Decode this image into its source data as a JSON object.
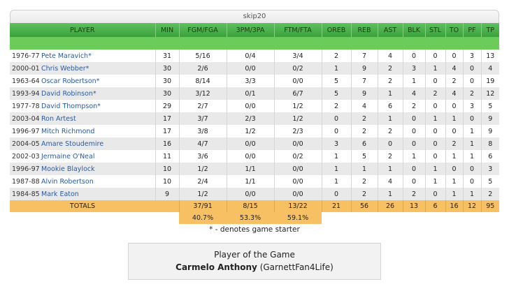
{
  "tab_title": "skip20",
  "columns": [
    "PLAYER",
    "MIN",
    "FGM/FGA",
    "3PM/3PA",
    "FTM/FTA",
    "OREB",
    "REB",
    "AST",
    "BLK",
    "STL",
    "TO",
    "PF",
    "TP"
  ],
  "rows": [
    {
      "year": "1976-77",
      "player": "Pete Maravich*",
      "min": "31",
      "fg": "5/16",
      "tp3": "0/4",
      "ft": "3/4",
      "oreb": "2",
      "reb": "7",
      "ast": "4",
      "blk": "0",
      "stl": "0",
      "to": "0",
      "pf": "3",
      "pts": "13"
    },
    {
      "year": "2000-01",
      "player": "Chris Webber*",
      "min": "30",
      "fg": "2/6",
      "tp3": "0/0",
      "ft": "0/2",
      "oreb": "1",
      "reb": "9",
      "ast": "2",
      "blk": "3",
      "stl": "1",
      "to": "4",
      "pf": "0",
      "pts": "4"
    },
    {
      "year": "1963-64",
      "player": "Oscar Robertson*",
      "min": "30",
      "fg": "8/14",
      "tp3": "3/3",
      "ft": "0/0",
      "oreb": "5",
      "reb": "7",
      "ast": "2",
      "blk": "1",
      "stl": "0",
      "to": "2",
      "pf": "0",
      "pts": "19"
    },
    {
      "year": "1993-94",
      "player": "David Robinson*",
      "min": "30",
      "fg": "3/12",
      "tp3": "0/1",
      "ft": "6/7",
      "oreb": "5",
      "reb": "9",
      "ast": "1",
      "blk": "4",
      "stl": "2",
      "to": "4",
      "pf": "2",
      "pts": "12"
    },
    {
      "year": "1977-78",
      "player": "David Thompson*",
      "min": "29",
      "fg": "2/7",
      "tp3": "0/0",
      "ft": "1/2",
      "oreb": "2",
      "reb": "4",
      "ast": "6",
      "blk": "2",
      "stl": "0",
      "to": "0",
      "pf": "3",
      "pts": "5"
    },
    {
      "year": "2003-04",
      "player": "Ron Artest",
      "min": "17",
      "fg": "3/7",
      "tp3": "2/3",
      "ft": "1/2",
      "oreb": "0",
      "reb": "2",
      "ast": "1",
      "blk": "0",
      "stl": "1",
      "to": "1",
      "pf": "0",
      "pts": "9"
    },
    {
      "year": "1996-97",
      "player": "Mitch Richmond",
      "min": "17",
      "fg": "3/8",
      "tp3": "1/2",
      "ft": "2/3",
      "oreb": "0",
      "reb": "2",
      "ast": "2",
      "blk": "0",
      "stl": "0",
      "to": "0",
      "pf": "1",
      "pts": "9"
    },
    {
      "year": "2004-05",
      "player": "Amare Stoudemire",
      "min": "16",
      "fg": "4/7",
      "tp3": "0/0",
      "ft": "0/0",
      "oreb": "3",
      "reb": "6",
      "ast": "0",
      "blk": "0",
      "stl": "0",
      "to": "2",
      "pf": "1",
      "pts": "8"
    },
    {
      "year": "2002-03",
      "player": "Jermaine O'Neal",
      "min": "11",
      "fg": "3/6",
      "tp3": "0/0",
      "ft": "0/2",
      "oreb": "1",
      "reb": "5",
      "ast": "2",
      "blk": "1",
      "stl": "0",
      "to": "1",
      "pf": "1",
      "pts": "6"
    },
    {
      "year": "1996-97",
      "player": "Mookie Blaylock",
      "min": "10",
      "fg": "1/2",
      "tp3": "1/1",
      "ft": "0/0",
      "oreb": "1",
      "reb": "1",
      "ast": "1",
      "blk": "0",
      "stl": "1",
      "to": "0",
      "pf": "0",
      "pts": "3"
    },
    {
      "year": "1987-88",
      "player": "Alvin Robertson",
      "min": "10",
      "fg": "2/4",
      "tp3": "1/1",
      "ft": "0/0",
      "oreb": "1",
      "reb": "2",
      "ast": "4",
      "blk": "0",
      "stl": "1",
      "to": "1",
      "pf": "0",
      "pts": "5"
    },
    {
      "year": "1984-85",
      "player": "Mark Eaton",
      "min": "9",
      "fg": "1/2",
      "tp3": "0/0",
      "ft": "0/0",
      "oreb": "0",
      "reb": "2",
      "ast": "1",
      "blk": "2",
      "stl": "0",
      "to": "1",
      "pf": "1",
      "pts": "2"
    }
  ],
  "totals": {
    "label": "TOTALS",
    "fg": "37/91",
    "tp3": "8/15",
    "ft": "13/22",
    "oreb": "21",
    "reb": "56",
    "ast": "26",
    "blk": "13",
    "stl": "6",
    "to": "16",
    "pf": "12",
    "pts": "95"
  },
  "percentages": {
    "fg": "40.7%",
    "tp3": "53.3%",
    "ft": "59.1%"
  },
  "note": "* - denotes game starter",
  "potg": {
    "title": "Player of the Game",
    "name": "Carmelo Anthony",
    "by": "(GarnettFan4Life)"
  },
  "colors": {
    "header_green": "#4caf50",
    "totals_orange": "#f6c063",
    "link_blue": "#2a5aa0"
  }
}
